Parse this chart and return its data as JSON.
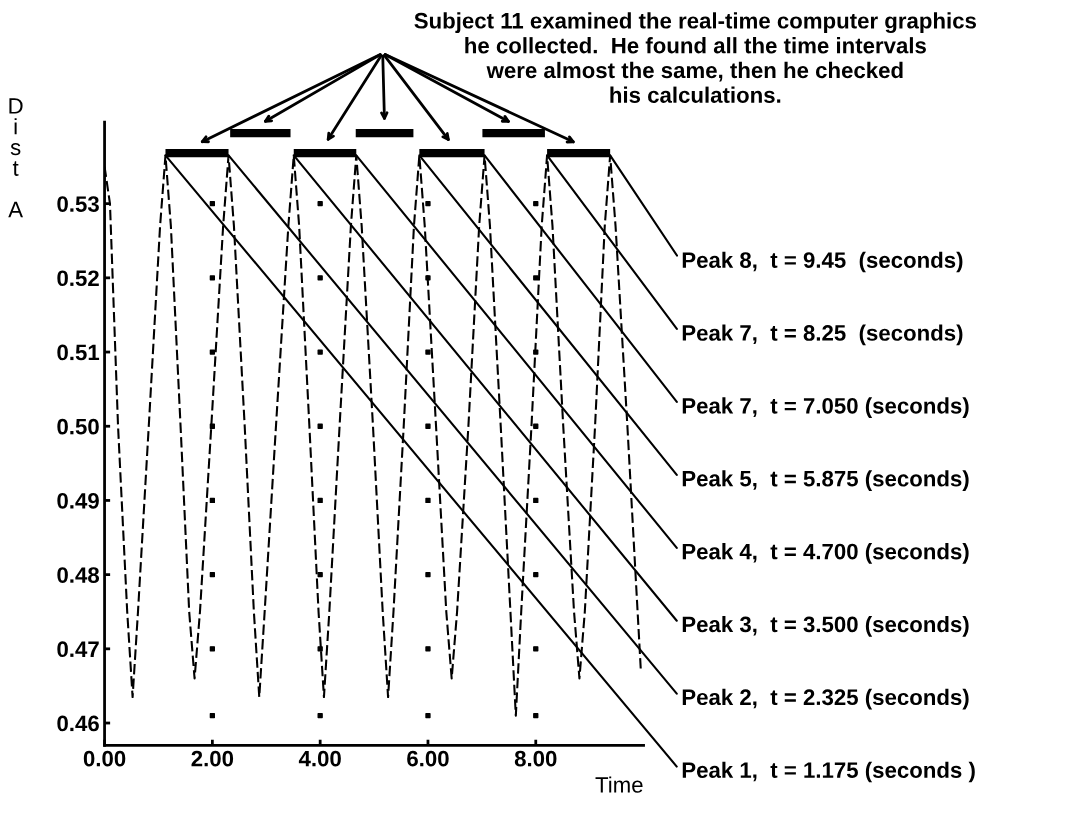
{
  "chart_data": {
    "type": "line",
    "xlabel": "Time",
    "ylabel": "Dist A",
    "xlim": [
      0,
      10
    ],
    "ylim": [
      0.457,
      0.541
    ],
    "xticks": [
      {
        "value": 0,
        "label": "0.00"
      },
      {
        "value": 2,
        "label": "2.00"
      },
      {
        "value": 4,
        "label": "4.00"
      },
      {
        "value": 6,
        "label": "6.00"
      },
      {
        "value": 8,
        "label": "8.00"
      }
    ],
    "yticks": [
      {
        "value": 0.46,
        "label": "0.46"
      },
      {
        "value": 0.47,
        "label": "0.47"
      },
      {
        "value": 0.48,
        "label": "0.48"
      },
      {
        "value": 0.49,
        "label": "0.49"
      },
      {
        "value": 0.5,
        "label": "0.50"
      },
      {
        "value": 0.51,
        "label": "0.51"
      },
      {
        "value": 0.52,
        "label": "0.52"
      },
      {
        "value": 0.53,
        "label": "0.53"
      }
    ],
    "grid": false,
    "legend": false,
    "marker": "none",
    "line_style": "dashed",
    "series": [
      {
        "color": "#000000",
        "x": [
          0.0,
          0.1,
          0.25,
          0.42,
          0.52,
          0.62,
          0.82,
          1.03,
          1.13,
          1.23,
          1.41,
          1.57,
          1.67,
          1.77,
          1.98,
          2.2,
          2.3,
          2.4,
          2.6,
          2.77,
          2.87,
          2.97,
          3.18,
          3.41,
          3.51,
          3.61,
          3.8,
          3.97,
          4.07,
          4.17,
          4.36,
          4.57,
          4.67,
          4.77,
          4.98,
          5.16,
          5.26,
          5.36,
          5.55,
          5.74,
          5.84,
          5.94,
          6.15,
          6.34,
          6.44,
          6.54,
          6.75,
          6.95,
          7.05,
          7.15,
          7.35,
          7.53,
          7.63,
          7.73,
          7.92,
          8.11,
          8.21,
          8.31,
          8.51,
          8.71,
          8.81,
          8.91,
          9.1,
          9.28,
          9.38,
          9.48,
          9.7,
          9.95
        ],
        "values": [
          0.535,
          0.53,
          0.5,
          0.475,
          0.4635,
          0.475,
          0.5,
          0.527,
          0.5365,
          0.527,
          0.5,
          0.475,
          0.466,
          0.475,
          0.5,
          0.527,
          0.5365,
          0.527,
          0.5,
          0.475,
          0.4635,
          0.475,
          0.5,
          0.527,
          0.5365,
          0.527,
          0.5,
          0.475,
          0.4635,
          0.475,
          0.5,
          0.527,
          0.5365,
          0.527,
          0.5,
          0.475,
          0.4635,
          0.475,
          0.5,
          0.527,
          0.5365,
          0.527,
          0.5,
          0.475,
          0.466,
          0.475,
          0.5,
          0.527,
          0.5365,
          0.527,
          0.5,
          0.475,
          0.461,
          0.475,
          0.5,
          0.527,
          0.5365,
          0.527,
          0.5,
          0.475,
          0.466,
          0.475,
          0.5,
          0.527,
          0.5365,
          0.527,
          0.5,
          0.467
        ]
      },
      {
        "type": "scatter",
        "marker": "square",
        "color": "#000000",
        "x": [
          2,
          2,
          2,
          2,
          2,
          2,
          2,
          2,
          4,
          4,
          4,
          4,
          4,
          4,
          4,
          4,
          6,
          6,
          6,
          6,
          6,
          6,
          6,
          6,
          8,
          8,
          8,
          8,
          8,
          8,
          8,
          8
        ],
        "values": [
          0.461,
          0.47,
          0.48,
          0.49,
          0.5,
          0.51,
          0.52,
          0.53,
          0.461,
          0.47,
          0.48,
          0.49,
          0.5,
          0.51,
          0.52,
          0.53,
          0.461,
          0.47,
          0.48,
          0.49,
          0.5,
          0.51,
          0.52,
          0.53,
          0.461,
          0.47,
          0.48,
          0.49,
          0.5,
          0.51,
          0.52,
          0.53
        ]
      },
      {
        "color": "#000000",
        "line_style": "solid",
        "x": [
          1.13,
          2.3
        ],
        "values": [
          0.5368,
          0.5368
        ]
      },
      {
        "color": "#000000",
        "line_style": "solid",
        "x": [
          2.33,
          3.45
        ],
        "values": [
          0.5395,
          0.5395
        ]
      },
      {
        "color": "#000000",
        "line_style": "solid",
        "x": [
          3.51,
          4.67
        ],
        "values": [
          0.5368,
          0.5368
        ]
      },
      {
        "color": "#000000",
        "line_style": "solid",
        "x": [
          4.66,
          5.73
        ],
        "values": [
          0.5395,
          0.5395
        ]
      },
      {
        "color": "#000000",
        "line_style": "solid",
        "x": [
          5.84,
          7.05
        ],
        "values": [
          0.5368,
          0.5368
        ]
      },
      {
        "color": "#000000",
        "line_style": "solid",
        "x": [
          7.01,
          8.17
        ],
        "values": [
          0.5395,
          0.5395
        ]
      },
      {
        "color": "#000000",
        "line_style": "solid",
        "x": [
          8.21,
          9.38
        ],
        "values": [
          0.5368,
          0.5368
        ]
      }
    ],
    "annotations": [
      "Subject 11 examined the real-time computer graphics\nhe collected.  He found all the time intervals\nwere almost the same, then he checked\nhis calculations.",
      {
        "text": "Peak 8,  t = 9.45  (seconds)",
        "x": 9.38,
        "y": 0.5365
      },
      {
        "text": "Peak 7,  t = 8.25  (seconds)",
        "x": 8.21,
        "y": 0.5365
      },
      {
        "text": "Peak 7,  t = 7.050 (seconds)",
        "x": 7.05,
        "y": 0.5365
      },
      {
        "text": "Peak 5,  t = 5.875 (seconds)",
        "x": 5.84,
        "y": 0.5365
      },
      {
        "text": "Peak 4,  t = 4.700 (seconds)",
        "x": 4.67,
        "y": 0.5365
      },
      {
        "text": "Peak 3,  t = 3.500 (seconds)",
        "x": 3.51,
        "y": 0.5365
      },
      {
        "text": "Peak 2,  t = 2.325 (seconds)",
        "x": 2.3,
        "y": 0.5365
      },
      {
        "text": "Peak 1,  t = 1.175 (seconds )",
        "x": 1.13,
        "y": 0.5365
      }
    ]
  }
}
